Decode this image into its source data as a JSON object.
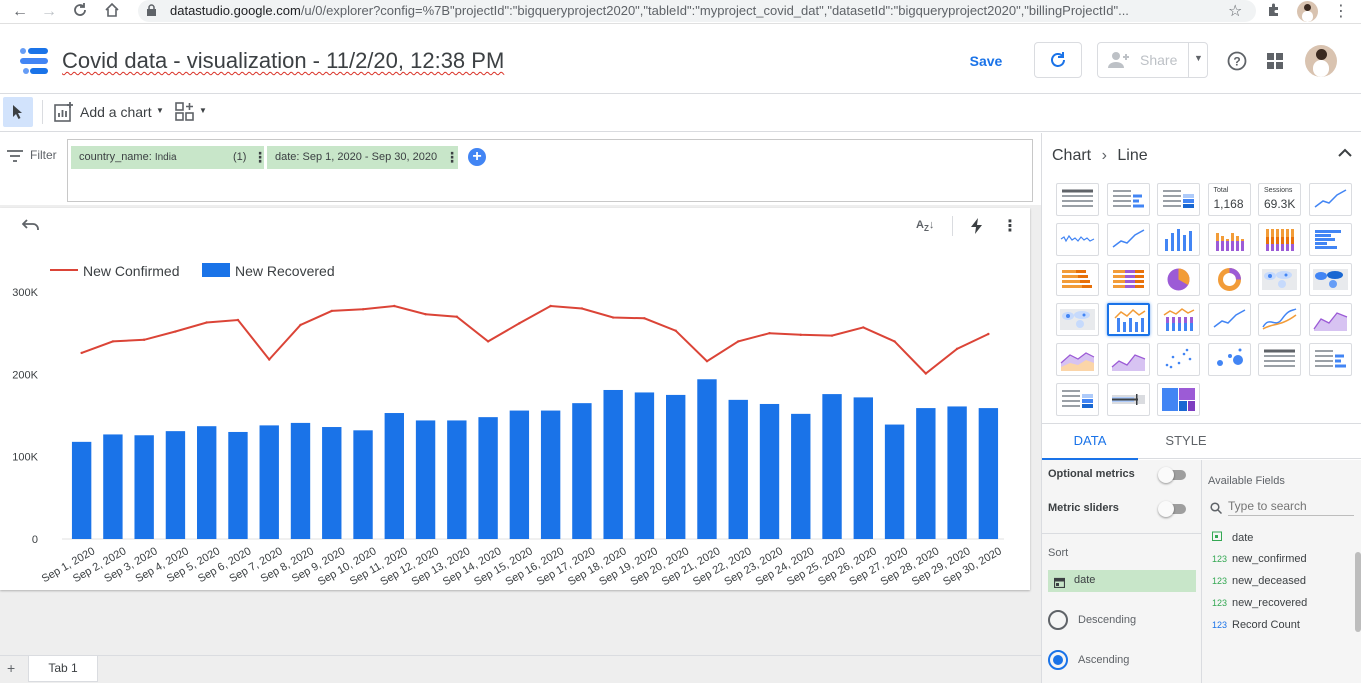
{
  "browser": {
    "url_domain": "datastudio.google.com",
    "url_path": "/u/0/explorer?config=%7B\"projectId\":\"bigqueryproject2020\",\"tableId\":\"myproject_covid_dat\",\"datasetId\":\"bigqueryproject2020\",\"billingProjectId\"..."
  },
  "header": {
    "title": "Covid data - visualization - 11/2/20, 12:38 PM",
    "save_label": "Save",
    "share_label": "Share"
  },
  "toolbar": {
    "add_chart_label": "Add a chart"
  },
  "filterbar": {
    "label": "Filter",
    "chips": [
      {
        "field": "country_name:",
        "value": "India",
        "count": "(1)"
      },
      {
        "field": "date:",
        "value": "Sep 1, 2020 - Sep 30, 2020",
        "count": ""
      }
    ]
  },
  "chart_data": {
    "type": "bar",
    "categories": [
      "Sep 1, 2020",
      "Sep 2, 2020",
      "Sep 3, 2020",
      "Sep 4, 2020",
      "Sep 5, 2020",
      "Sep 6, 2020",
      "Sep 7, 2020",
      "Sep 8, 2020",
      "Sep 9, 2020",
      "Sep 10, 2020",
      "Sep 11, 2020",
      "Sep 12, 2020",
      "Sep 13, 2020",
      "Sep 14, 2020",
      "Sep 15, 2020",
      "Sep 16, 2020",
      "Sep 17, 2020",
      "Sep 18, 2020",
      "Sep 19, 2020",
      "Sep 20, 2020",
      "Sep 21, 2020",
      "Sep 22, 2020",
      "Sep 23, 2020",
      "Sep 24, 2020",
      "Sep 25, 2020",
      "Sep 26, 2020",
      "Sep 27, 2020",
      "Sep 28, 2020",
      "Sep 29, 2020",
      "Sep 30, 2020"
    ],
    "series": [
      {
        "name": "New Confirmed",
        "kind": "line",
        "color": "#db4437",
        "values": [
          226000,
          240000,
          242000,
          252000,
          263000,
          266000,
          218000,
          260000,
          277000,
          279000,
          283000,
          273000,
          270000,
          240000,
          262000,
          283000,
          280000,
          269000,
          268000,
          253000,
          216000,
          240000,
          250000,
          248000,
          247000,
          257000,
          240000,
          201000,
          231000,
          249000
        ]
      },
      {
        "name": "New Recovered",
        "kind": "bar",
        "color": "#1a73e8",
        "values": [
          118000,
          127000,
          126000,
          131000,
          137000,
          130000,
          138000,
          141000,
          136000,
          132000,
          153000,
          144000,
          144000,
          148000,
          156000,
          156000,
          165000,
          181000,
          178000,
          175000,
          194000,
          169000,
          164000,
          152000,
          176000,
          172000,
          139000,
          159000,
          161000,
          159000
        ]
      }
    ],
    "yticks": [
      "0",
      "100K",
      "200K",
      "300K"
    ],
    "ylim": [
      0,
      300000
    ]
  },
  "panel": {
    "breadcrumb_root": "Chart",
    "breadcrumb_leaf": "Line",
    "scorecard1_label": "Total",
    "scorecard1_value": "1,168",
    "scorecard2_label": "Sessions",
    "scorecard2_value": "69.3K",
    "tab_data": "DATA",
    "tab_style": "STYLE",
    "optional_metrics": "Optional metrics",
    "metric_sliders": "Metric sliders",
    "sort_label": "Sort",
    "sort_field": "date",
    "descending": "Descending",
    "ascending": "Ascending",
    "available_fields_label": "Available Fields",
    "search_placeholder": "Type to search",
    "fields": [
      {
        "type": "date",
        "name": "date"
      },
      {
        "type": "123",
        "name": "new_confirmed"
      },
      {
        "type": "123",
        "name": "new_deceased"
      },
      {
        "type": "123",
        "name": "new_recovered"
      },
      {
        "type": "123",
        "name": "Record Count"
      }
    ]
  },
  "tabs": {
    "tab1": "Tab 1"
  }
}
